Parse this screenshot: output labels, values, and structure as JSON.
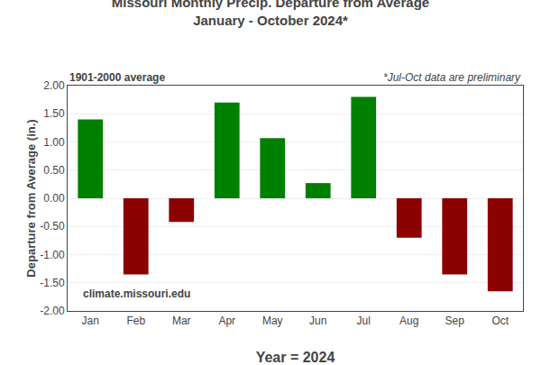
{
  "chart_data": {
    "type": "bar",
    "title": "Missouri Monthly Precip. Departure from Average",
    "subtitle": "January - October 2024*",
    "xlabel": "Year = 2024",
    "ylabel": "Departure from Average (in.)",
    "categories": [
      "Jan",
      "Feb",
      "Mar",
      "Apr",
      "May",
      "Jun",
      "Jul",
      "Aug",
      "Sep",
      "Oct"
    ],
    "values": [
      1.4,
      -1.35,
      -0.42,
      1.7,
      1.07,
      0.27,
      1.8,
      -0.7,
      -1.35,
      -1.65
    ],
    "colors": [
      "#008000",
      "#8B0000",
      "#8B0000",
      "#008000",
      "#008000",
      "#008000",
      "#008000",
      "#8B0000",
      "#8B0000",
      "#8B0000"
    ],
    "ylim": [
      -2.0,
      2.0
    ],
    "yticks": [
      {
        "value": -2.0,
        "label": "-2.00"
      },
      {
        "value": -1.5,
        "label": "-1.50"
      },
      {
        "value": -1.0,
        "label": "-1.00"
      },
      {
        "value": -0.5,
        "label": "-0.50"
      },
      {
        "value": 0.0,
        "label": "0.00"
      },
      {
        "value": 0.5,
        "label": "0.50"
      },
      {
        "value": 1.0,
        "label": "1.00"
      },
      {
        "value": 1.5,
        "label": "1.50"
      },
      {
        "value": 2.0,
        "label": "2.00"
      }
    ],
    "grid": true,
    "annotations": [
      "1901-2000 average",
      "*Jul-Oct data are preliminary",
      "climate.missouri.edu"
    ]
  }
}
